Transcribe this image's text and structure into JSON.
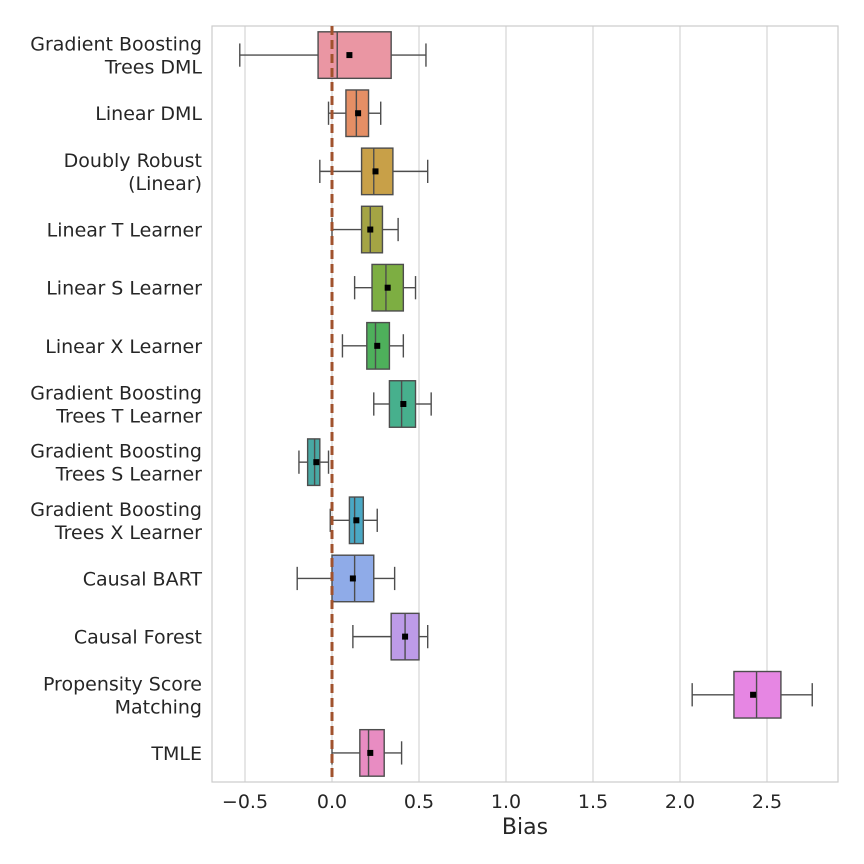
{
  "chart_data": {
    "type": "box",
    "xlabel": "Bias",
    "ylabel": "",
    "title": "",
    "xlim": [
      -0.68,
      2.92
    ],
    "xticks": [
      -0.5,
      0.0,
      0.5,
      1.0,
      1.5,
      2.0,
      2.5
    ],
    "xtick_labels": [
      "−0.5",
      "0.0",
      "0.5",
      "1.0",
      "1.5",
      "2.0",
      "2.5"
    ],
    "grid": "vertical",
    "reference_line": {
      "x": 0.0,
      "style": "dashed",
      "color": "#a0522d"
    },
    "categories": [
      {
        "label": [
          "Gradient Boosting",
          "Trees DML"
        ],
        "color": "#ea96a3",
        "whislo": -0.53,
        "q1": -0.08,
        "median": 0.03,
        "q3": 0.34,
        "whishi": 0.54,
        "mean": 0.1
      },
      {
        "label": [
          "Linear DML"
        ],
        "color": "#e58f65",
        "whislo": -0.02,
        "q1": 0.08,
        "median": 0.14,
        "q3": 0.21,
        "whishi": 0.28,
        "mean": 0.15
      },
      {
        "label": [
          "Doubly Robust",
          "(Linear)"
        ],
        "color": "#c8a048",
        "whislo": -0.07,
        "q1": 0.17,
        "median": 0.24,
        "q3": 0.35,
        "whishi": 0.55,
        "mean": 0.25
      },
      {
        "label": [
          "Linear T Learner"
        ],
        "color": "#a4a444",
        "whislo": 0.0,
        "q1": 0.17,
        "median": 0.22,
        "q3": 0.29,
        "whishi": 0.38,
        "mean": 0.22
      },
      {
        "label": [
          "Linear S Learner"
        ],
        "color": "#7dae42",
        "whislo": 0.13,
        "q1": 0.23,
        "median": 0.31,
        "q3": 0.41,
        "whishi": 0.48,
        "mean": 0.32
      },
      {
        "label": [
          "Linear X Learner"
        ],
        "color": "#4eb05b",
        "whislo": 0.06,
        "q1": 0.2,
        "median": 0.25,
        "q3": 0.33,
        "whishi": 0.41,
        "mean": 0.26
      },
      {
        "label": [
          "Gradient Boosting",
          "Trees T Learner"
        ],
        "color": "#47b08d",
        "whislo": 0.24,
        "q1": 0.33,
        "median": 0.4,
        "q3": 0.48,
        "whishi": 0.57,
        "mean": 0.41
      },
      {
        "label": [
          "Gradient Boosting",
          "Trees S Learner"
        ],
        "color": "#48a9a4",
        "whislo": -0.19,
        "q1": -0.14,
        "median": -0.1,
        "q3": -0.07,
        "whishi": -0.02,
        "mean": -0.09
      },
      {
        "label": [
          "Gradient Boosting",
          "Trees X Learner"
        ],
        "color": "#4aa8c4",
        "whislo": -0.01,
        "q1": 0.1,
        "median": 0.13,
        "q3": 0.18,
        "whishi": 0.26,
        "mean": 0.14
      },
      {
        "label": [
          "Causal BART"
        ],
        "color": "#8fabe8",
        "whislo": -0.2,
        "q1": 0.0,
        "median": 0.13,
        "q3": 0.24,
        "whishi": 0.36,
        "mean": 0.12
      },
      {
        "label": [
          "Causal Forest"
        ],
        "color": "#bd9be8",
        "whislo": 0.12,
        "q1": 0.34,
        "median": 0.42,
        "q3": 0.5,
        "whishi": 0.55,
        "mean": 0.42
      },
      {
        "label": [
          "Propensity Score",
          "Matching"
        ],
        "color": "#e686e3",
        "whislo": 2.07,
        "q1": 2.31,
        "median": 2.44,
        "q3": 2.58,
        "whishi": 2.76,
        "mean": 2.42
      },
      {
        "label": [
          "TMLE"
        ],
        "color": "#e88cc2",
        "whislo": 0.0,
        "q1": 0.16,
        "median": 0.21,
        "q3": 0.3,
        "whishi": 0.4,
        "mean": 0.22
      }
    ]
  }
}
